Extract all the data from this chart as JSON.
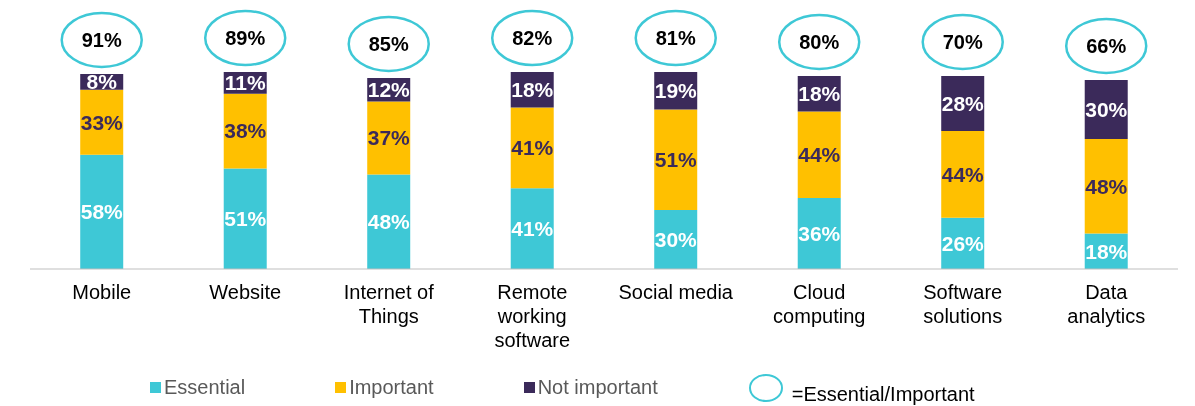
{
  "chart_data": {
    "type": "bar",
    "stacked": true,
    "data_labels": true,
    "legend": "bottom",
    "categories": [
      "Mobile",
      "Website",
      "Internet of Things",
      "Remote working software",
      "Social media",
      "Cloud computing",
      "Software solutions",
      "Data analytics"
    ],
    "series": [
      {
        "name": "Essential",
        "color": "#3ec8d6",
        "values": [
          58,
          51,
          48,
          41,
          30,
          36,
          26,
          18
        ],
        "value_labels": [
          "58%",
          "51%",
          "48%",
          "41%",
          "30%",
          "36%",
          "26%",
          "18%"
        ]
      },
      {
        "name": "Important",
        "color": "#ffc000",
        "values": [
          33,
          38,
          37,
          41,
          51,
          44,
          44,
          48
        ],
        "value_labels": [
          "33%",
          "38%",
          "37%",
          "41%",
          "51%",
          "44%",
          "44%",
          "48%"
        ]
      },
      {
        "name": "Not important",
        "color": "#3b2a5a",
        "values": [
          8,
          11,
          12,
          18,
          19,
          18,
          28,
          30
        ],
        "value_labels": [
          "8%",
          "11%",
          "12%",
          "18%",
          "19%",
          "18%",
          "28%",
          "30%"
        ]
      }
    ],
    "annotations": [
      "91%",
      "89%",
      "85%",
      "82%",
      "81%",
      "80%",
      "70%",
      "66%",
      "=Essential/Important"
    ]
  }
}
